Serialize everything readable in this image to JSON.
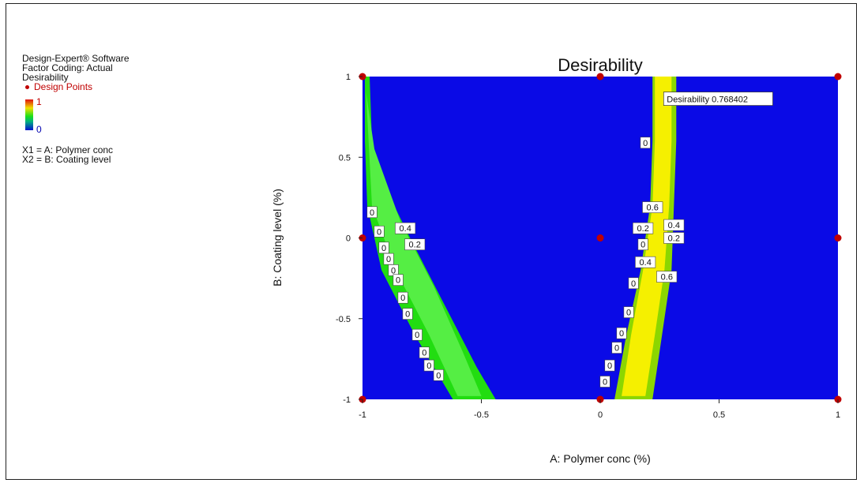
{
  "legend": {
    "software": "Design-Expert® Software",
    "coding": "Factor Coding: Actual",
    "response": "Desirability",
    "design_points_label": "Design Points",
    "scale_high": "1",
    "scale_low": "0",
    "x1": "X1 = A: Polymer conc",
    "x2": "X2 = B: Coating level"
  },
  "colors": {
    "background_region": "#0a0ae6",
    "left_band_outer": "#22dd11",
    "left_band_inner": "#55ee44",
    "right_band_outer": "#8cd600",
    "right_band_inner": "#f5f000",
    "design_point": "#c00000"
  },
  "chart_data": {
    "type": "contour",
    "title": "Desirability",
    "xlabel": "A: Polymer conc (%)",
    "ylabel": "B: Coating level (%)",
    "xlim": [
      -1,
      1
    ],
    "ylim": [
      -1,
      1
    ],
    "x_ticks": [
      "-1",
      "-0.5",
      "0",
      "0.5",
      "1"
    ],
    "y_ticks": [
      "-1",
      "-0.5",
      "0",
      "0.5",
      "1"
    ],
    "x_tick_values": [
      -1,
      -0.5,
      0,
      0.5,
      1
    ],
    "y_tick_values": [
      -1,
      -0.5,
      0,
      0.5,
      1
    ],
    "design_points": [
      [
        -1,
        1
      ],
      [
        0,
        1
      ],
      [
        1,
        1
      ],
      [
        -1,
        0
      ],
      [
        0,
        0
      ],
      [
        1,
        0
      ],
      [
        -1,
        -1
      ],
      [
        0,
        -1
      ],
      [
        1,
        -1
      ]
    ],
    "flag": {
      "text": "Desirability 0.768402",
      "x": 0.28,
      "y": 0.86
    },
    "regions": [
      {
        "name": "left_outer",
        "fill_key": "left_band_outer",
        "points": [
          [
            -0.99,
            1
          ],
          [
            -0.97,
            1
          ],
          [
            -0.96,
            0.6
          ],
          [
            -0.9,
            0.3
          ],
          [
            -0.8,
            0
          ],
          [
            -0.66,
            -0.4
          ],
          [
            -0.52,
            -0.8
          ],
          [
            -0.44,
            -1
          ],
          [
            -0.62,
            -1
          ],
          [
            -0.78,
            -0.6
          ],
          [
            -0.92,
            -0.2
          ],
          [
            -0.98,
            0.2
          ],
          [
            -0.99,
            0.6
          ]
        ]
      },
      {
        "name": "left_inner",
        "fill_key": "left_band_inner",
        "points": [
          [
            -0.985,
            0.9
          ],
          [
            -0.95,
            0.55
          ],
          [
            -0.84,
            0.1
          ],
          [
            -0.7,
            -0.3
          ],
          [
            -0.58,
            -0.7
          ],
          [
            -0.5,
            -0.98
          ],
          [
            -0.6,
            -0.98
          ],
          [
            -0.72,
            -0.6
          ],
          [
            -0.86,
            -0.2
          ],
          [
            -0.96,
            0.2
          ]
        ]
      },
      {
        "name": "right_outer",
        "fill_key": "right_band_outer",
        "points": [
          [
            0.22,
            1
          ],
          [
            0.32,
            1
          ],
          [
            0.32,
            0.6
          ],
          [
            0.31,
            0.2
          ],
          [
            0.3,
            -0.2
          ],
          [
            0.26,
            -0.6
          ],
          [
            0.22,
            -1
          ],
          [
            0.06,
            -1
          ],
          [
            0.11,
            -0.6
          ],
          [
            0.17,
            -0.2
          ],
          [
            0.21,
            0.2
          ],
          [
            0.22,
            0.6
          ]
        ]
      },
      {
        "name": "right_inner",
        "fill_key": "right_band_inner",
        "points": [
          [
            0.23,
            1
          ],
          [
            0.3,
            1
          ],
          [
            0.3,
            0.6
          ],
          [
            0.29,
            0.2
          ],
          [
            0.27,
            -0.2
          ],
          [
            0.23,
            -0.6
          ],
          [
            0.19,
            -0.98
          ],
          [
            0.09,
            -0.98
          ],
          [
            0.13,
            -0.6
          ],
          [
            0.18,
            -0.2
          ],
          [
            0.22,
            0.2
          ],
          [
            0.23,
            0.6
          ]
        ]
      }
    ],
    "contour_labels": [
      {
        "text": "0",
        "x": -0.96,
        "y": 0.16
      },
      {
        "text": "0",
        "x": -0.93,
        "y": 0.04
      },
      {
        "text": "0.4",
        "x": -0.82,
        "y": 0.06
      },
      {
        "text": "0",
        "x": -0.91,
        "y": -0.06
      },
      {
        "text": "0.2",
        "x": -0.78,
        "y": -0.04
      },
      {
        "text": "0",
        "x": -0.89,
        "y": -0.13
      },
      {
        "text": "0",
        "x": -0.87,
        "y": -0.2
      },
      {
        "text": "0",
        "x": -0.85,
        "y": -0.26
      },
      {
        "text": "0",
        "x": -0.83,
        "y": -0.37
      },
      {
        "text": "0",
        "x": -0.81,
        "y": -0.47
      },
      {
        "text": "0",
        "x": -0.77,
        "y": -0.6
      },
      {
        "text": "0",
        "x": -0.74,
        "y": -0.71
      },
      {
        "text": "0",
        "x": -0.72,
        "y": -0.79
      },
      {
        "text": "0",
        "x": -0.68,
        "y": -0.85
      },
      {
        "text": "0",
        "x": 0.19,
        "y": 0.59
      },
      {
        "text": "0.6",
        "x": 0.22,
        "y": 0.19
      },
      {
        "text": "0.2",
        "x": 0.18,
        "y": 0.06
      },
      {
        "text": "0.4",
        "x": 0.31,
        "y": 0.08
      },
      {
        "text": "0",
        "x": 0.18,
        "y": -0.04
      },
      {
        "text": "0.2",
        "x": 0.31,
        "y": 0
      },
      {
        "text": "0.4",
        "x": 0.19,
        "y": -0.15
      },
      {
        "text": "0.6",
        "x": 0.28,
        "y": -0.24
      },
      {
        "text": "0",
        "x": 0.14,
        "y": -0.28
      },
      {
        "text": "0",
        "x": 0.12,
        "y": -0.46
      },
      {
        "text": "0",
        "x": 0.09,
        "y": -0.59
      },
      {
        "text": "0",
        "x": 0.07,
        "y": -0.68
      },
      {
        "text": "0",
        "x": 0.04,
        "y": -0.79
      },
      {
        "text": "0",
        "x": 0.02,
        "y": -0.89
      }
    ]
  }
}
